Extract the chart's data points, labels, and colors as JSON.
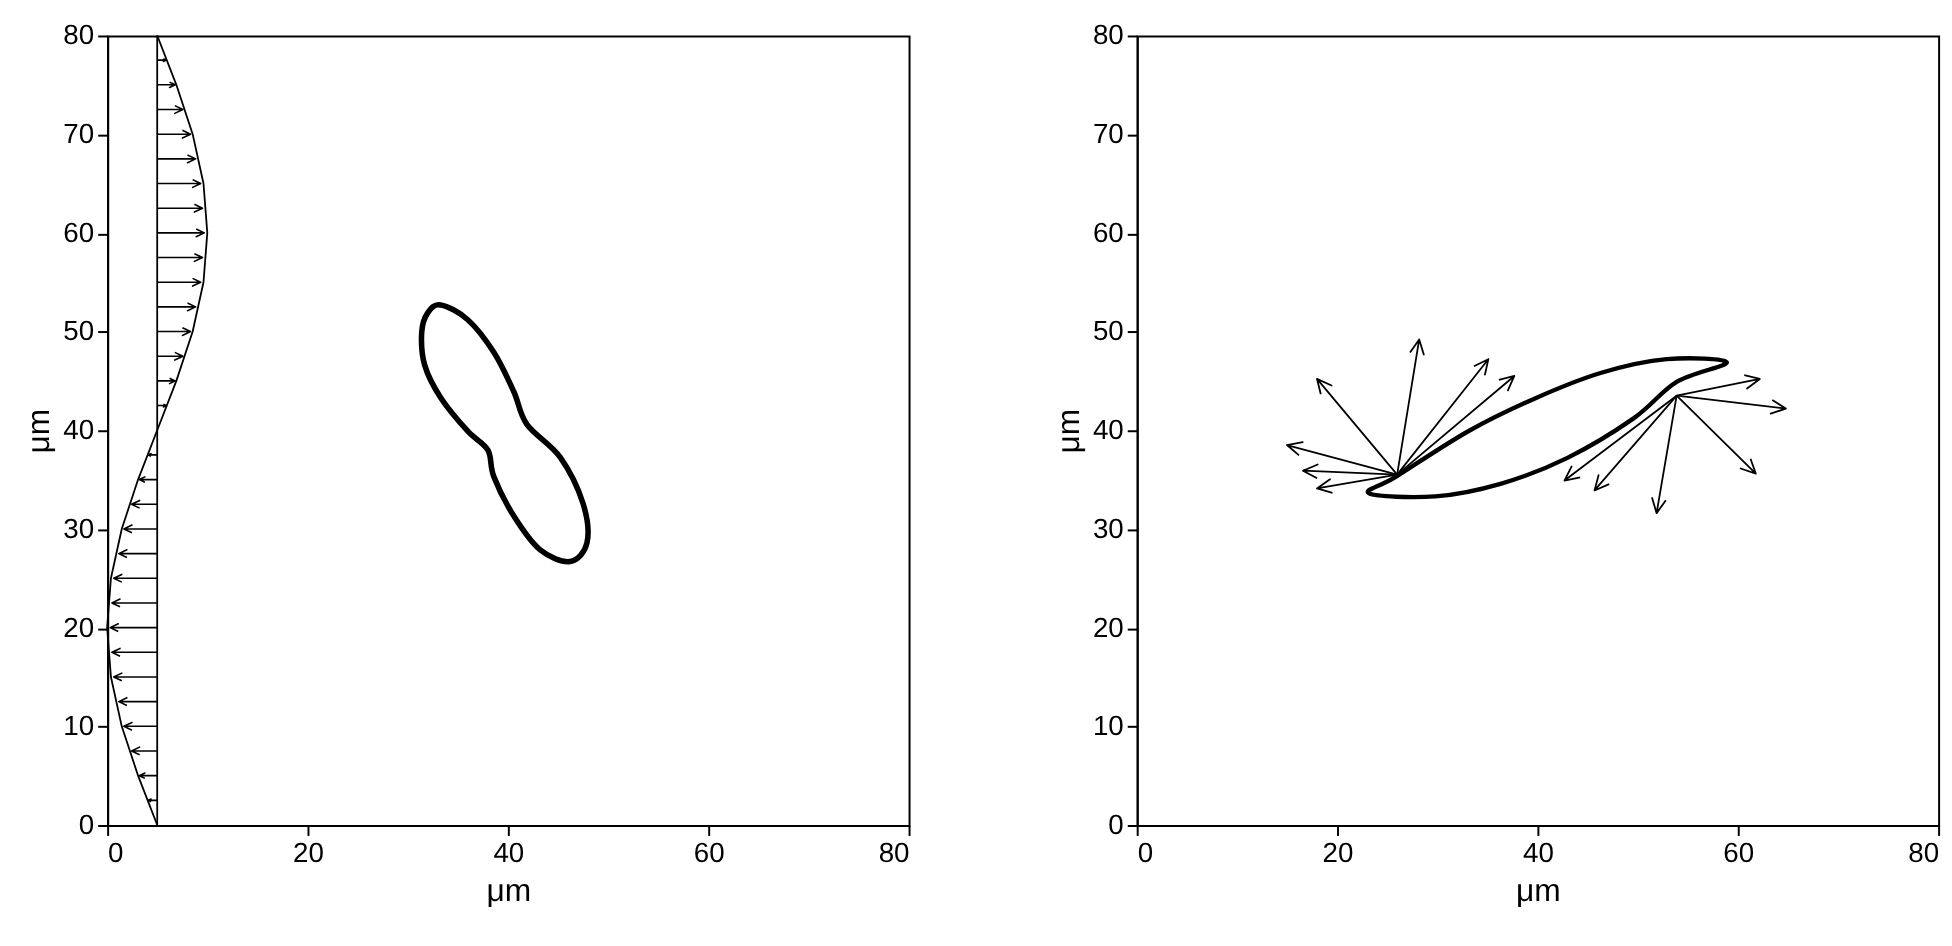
{
  "chart_data": [
    {
      "type": "line",
      "xlabel": "μm",
      "ylabel": "μm",
      "xlim": [
        0,
        80
      ],
      "ylim": [
        0,
        80
      ],
      "xticks": [
        0,
        20,
        40,
        60,
        80
      ],
      "yticks": [
        0,
        10,
        20,
        30,
        40,
        50,
        60,
        70,
        80
      ],
      "grid": false,
      "legend": false,
      "marker": "none",
      "series": [
        {
          "color": "#000000",
          "x": [
            5,
            5
          ],
          "values": [
            0,
            80
          ]
        },
        {
          "color": "#000000",
          "x": [
            5,
            3.09,
            1.46,
            0.38,
            0,
            0.38,
            1.46,
            3.09,
            5,
            6.91,
            8.54,
            9.62,
            10,
            9.62,
            8.54,
            6.91,
            5
          ],
          "values": [
            0,
            5,
            10,
            15,
            20,
            25,
            30,
            35,
            40,
            45,
            50,
            55,
            60,
            65,
            70,
            75,
            80
          ]
        }
      ]
    },
    {
      "type": "line",
      "xlabel": "μm",
      "ylabel": "μm",
      "xlim": [
        0,
        80
      ],
      "ylim": [
        0,
        80
      ],
      "xticks": [
        0,
        20,
        40,
        60,
        80
      ],
      "yticks": [
        0,
        10,
        20,
        30,
        40,
        50,
        60,
        70,
        80
      ],
      "grid": false,
      "legend": false,
      "marker": "none"
    }
  ]
}
